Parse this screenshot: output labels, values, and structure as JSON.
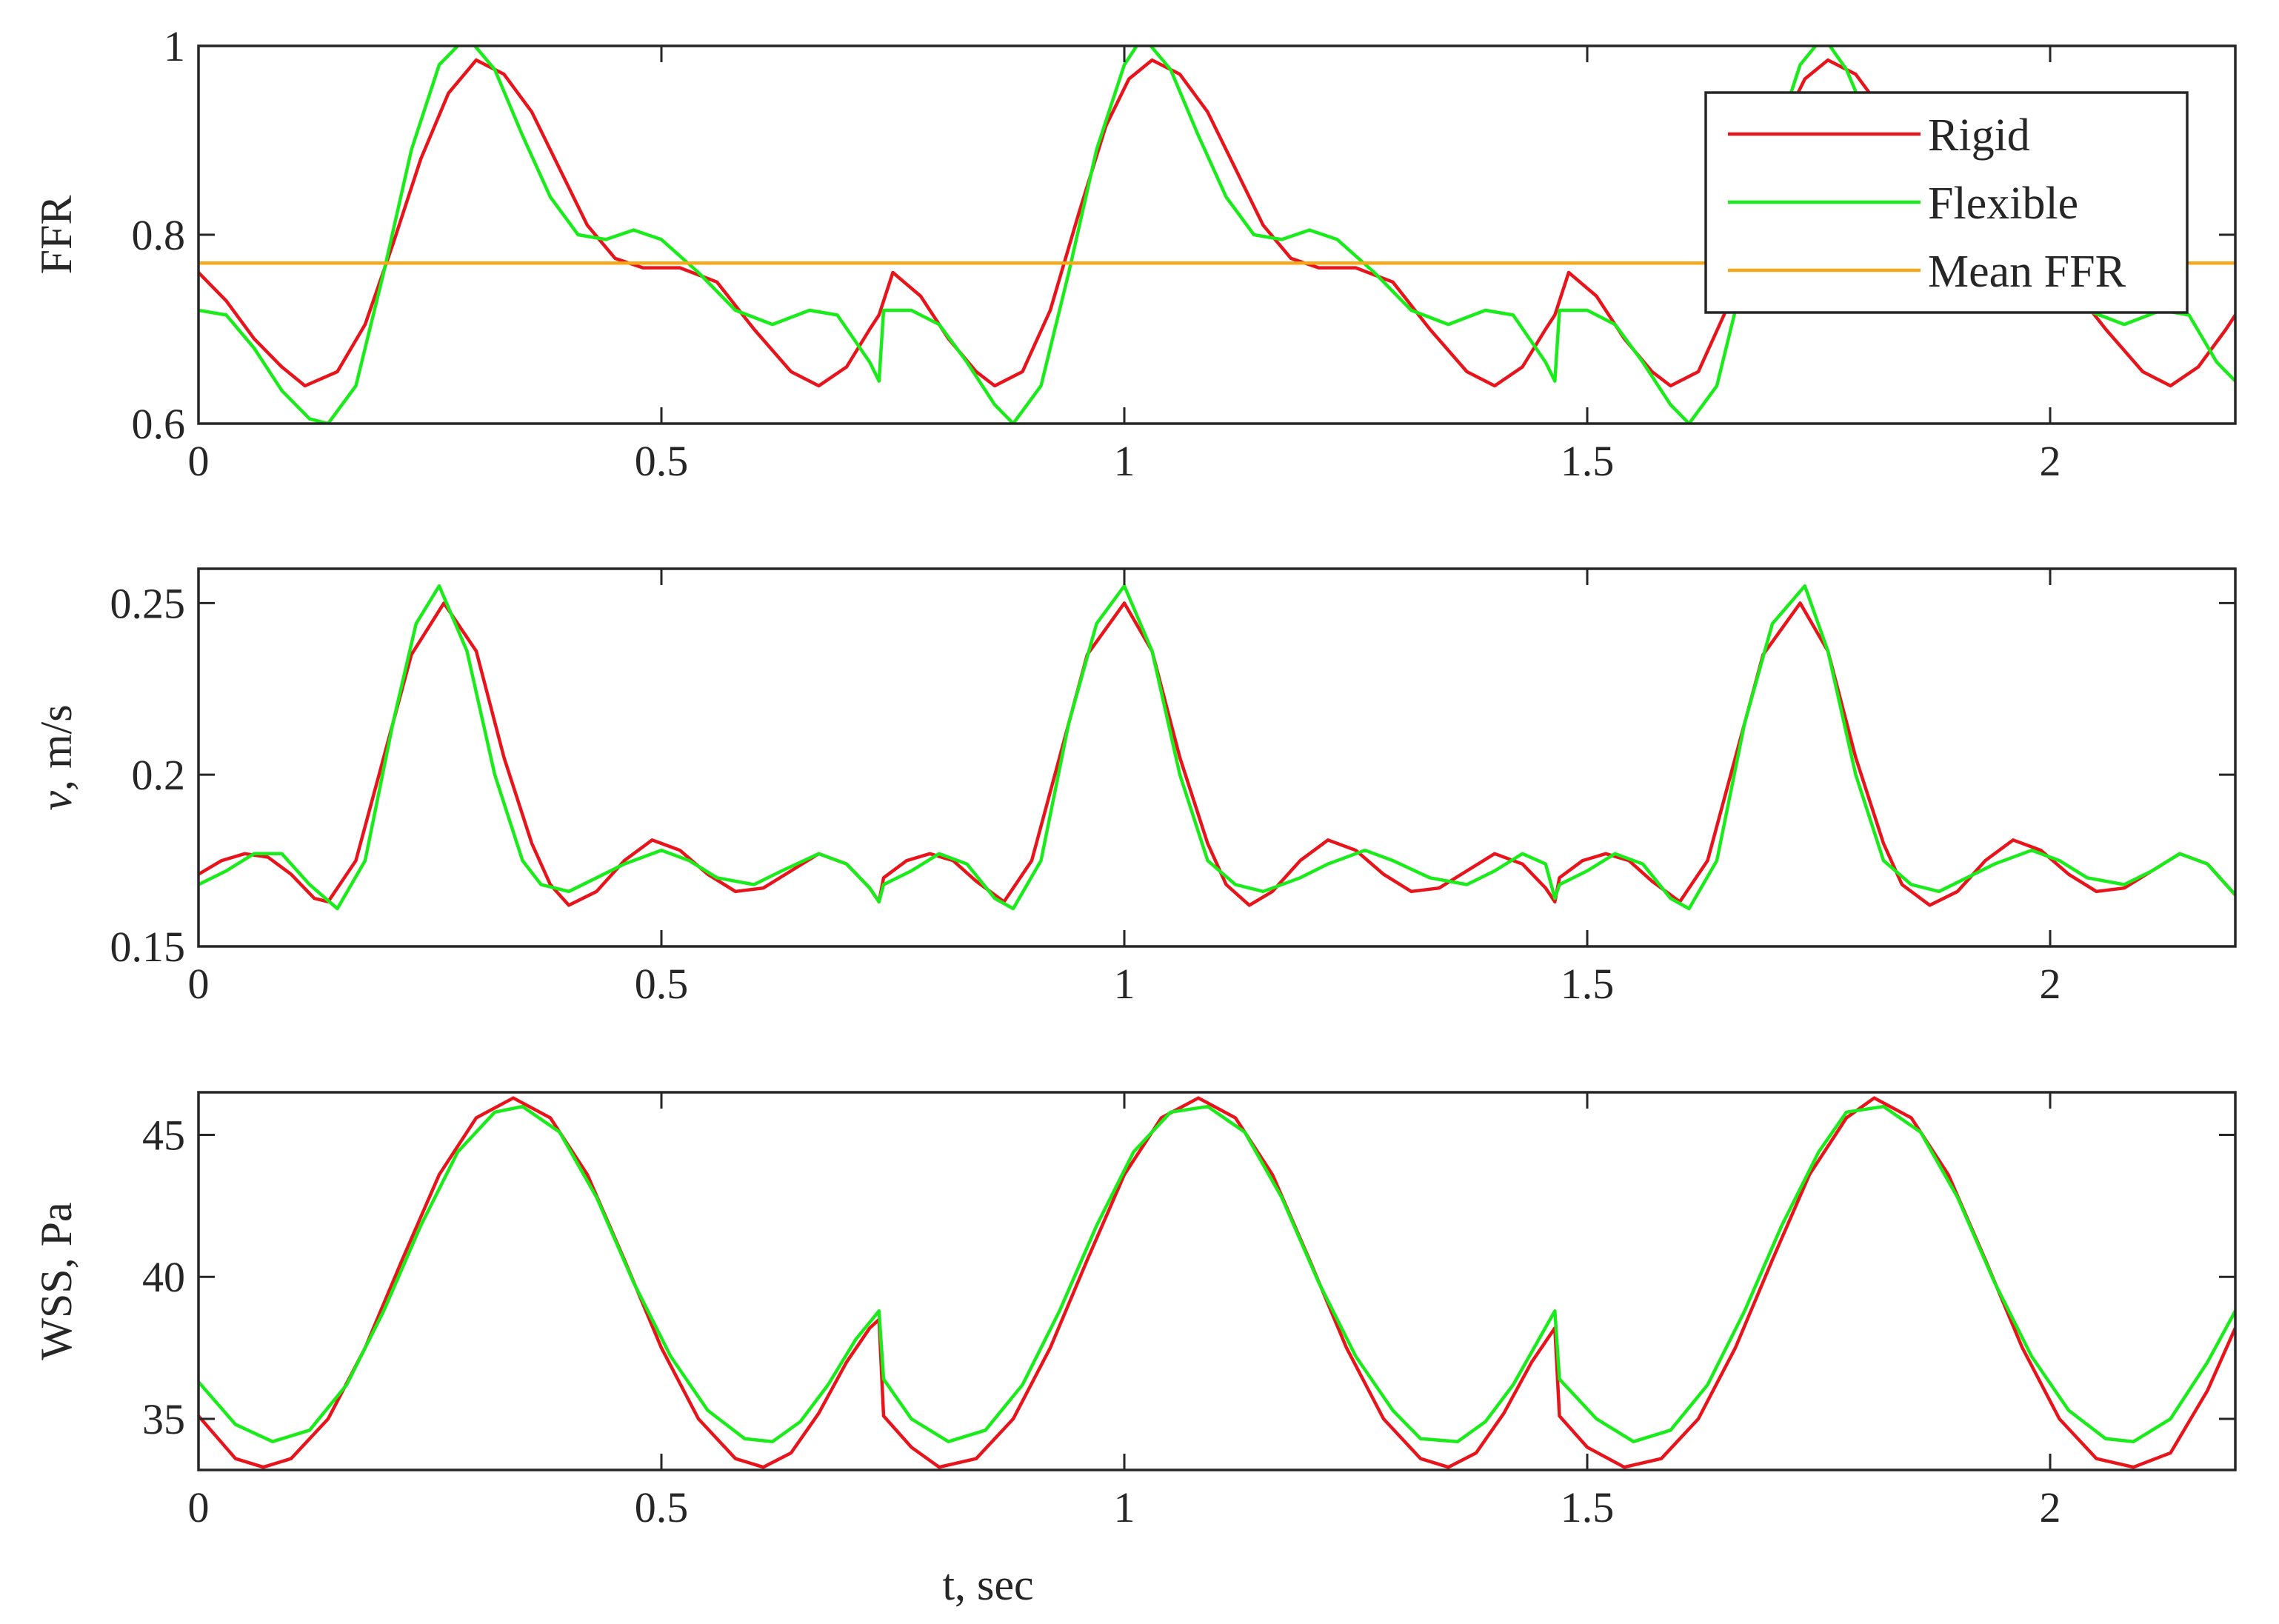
{
  "chart_data": [
    {
      "type": "line",
      "ylabel": "FFR",
      "xlabel": "",
      "xlim": [
        0,
        2.2
      ],
      "ylim": [
        0.6,
        1.0
      ],
      "xticks": [
        0,
        0.5,
        1,
        1.5,
        2
      ],
      "xtick_labels": [
        "0",
        "0.5",
        "1",
        "1.5",
        "2"
      ],
      "yticks": [
        0.6,
        0.8,
        1.0
      ],
      "ytick_labels": [
        "0.6",
        "0.8",
        "1"
      ],
      "legend": {
        "position": "top-right",
        "entries": [
          "Rigid",
          "Flexible",
          "Mean FFR"
        ]
      },
      "series": [
        {
          "name": "Rigid",
          "color": "#e8141b",
          "x": [
            0,
            0.03,
            0.06,
            0.09,
            0.115,
            0.15,
            0.18,
            0.21,
            0.24,
            0.27,
            0.3,
            0.33,
            0.36,
            0.39,
            0.42,
            0.45,
            0.48,
            0.52,
            0.56,
            0.6,
            0.64,
            0.67,
            0.7,
            0.725,
            0.735,
            0.75,
            0.78,
            0.81,
            0.84,
            0.86,
            0.89,
            0.92,
            0.95,
            0.98,
            1.005,
            1.03,
            1.06,
            1.09,
            1.12,
            1.15,
            1.18,
            1.21,
            1.25,
            1.29,
            1.33,
            1.37,
            1.4,
            1.43,
            1.455,
            1.465,
            1.48,
            1.51,
            1.54,
            1.57,
            1.59,
            1.62,
            1.65,
            1.68,
            1.71,
            1.735,
            1.76,
            1.79,
            1.82,
            1.85,
            1.88,
            1.91,
            1.94,
            1.98,
            2.02,
            2.06,
            2.1,
            2.13,
            2.16,
            2.19,
            2.2
          ],
          "values": [
            0.76,
            0.73,
            0.69,
            0.66,
            0.64,
            0.655,
            0.705,
            0.79,
            0.88,
            0.95,
            0.985,
            0.97,
            0.93,
            0.87,
            0.81,
            0.775,
            0.765,
            0.765,
            0.75,
            0.7,
            0.655,
            0.64,
            0.66,
            0.7,
            0.715,
            0.76,
            0.735,
            0.69,
            0.655,
            0.64,
            0.655,
            0.72,
            0.82,
            0.915,
            0.965,
            0.985,
            0.97,
            0.93,
            0.87,
            0.81,
            0.775,
            0.765,
            0.765,
            0.75,
            0.7,
            0.655,
            0.64,
            0.66,
            0.7,
            0.715,
            0.76,
            0.735,
            0.69,
            0.655,
            0.64,
            0.655,
            0.72,
            0.82,
            0.915,
            0.965,
            0.985,
            0.97,
            0.93,
            0.87,
            0.81,
            0.775,
            0.765,
            0.765,
            0.75,
            0.7,
            0.655,
            0.64,
            0.66,
            0.7,
            0.715
          ]
        },
        {
          "name": "Flexible",
          "color": "#1aeb1a",
          "x": [
            0,
            0.03,
            0.06,
            0.09,
            0.12,
            0.14,
            0.17,
            0.2,
            0.23,
            0.26,
            0.29,
            0.32,
            0.35,
            0.38,
            0.41,
            0.44,
            0.47,
            0.5,
            0.54,
            0.58,
            0.62,
            0.66,
            0.69,
            0.725,
            0.735,
            0.74,
            0.77,
            0.8,
            0.83,
            0.86,
            0.88,
            0.91,
            0.94,
            0.97,
            1.0,
            1.02,
            1.05,
            1.08,
            1.11,
            1.14,
            1.17,
            1.2,
            1.23,
            1.27,
            1.31,
            1.35,
            1.39,
            1.42,
            1.455,
            1.465,
            1.47,
            1.5,
            1.53,
            1.56,
            1.59,
            1.61,
            1.64,
            1.67,
            1.7,
            1.73,
            1.755,
            1.78,
            1.81,
            1.84,
            1.87,
            1.9,
            1.93,
            1.96,
            2.0,
            2.04,
            2.08,
            2.12,
            2.15,
            2.18,
            2.2
          ],
          "values": [
            0.72,
            0.715,
            0.68,
            0.635,
            0.605,
            0.6,
            0.64,
            0.76,
            0.89,
            0.98,
            1.01,
            0.975,
            0.905,
            0.84,
            0.8,
            0.795,
            0.805,
            0.795,
            0.76,
            0.72,
            0.705,
            0.72,
            0.715,
            0.665,
            0.645,
            0.72,
            0.72,
            0.705,
            0.665,
            0.62,
            0.6,
            0.64,
            0.76,
            0.89,
            0.98,
            1.01,
            0.975,
            0.905,
            0.84,
            0.8,
            0.795,
            0.805,
            0.795,
            0.76,
            0.72,
            0.705,
            0.72,
            0.715,
            0.665,
            0.645,
            0.72,
            0.72,
            0.705,
            0.665,
            0.62,
            0.6,
            0.64,
            0.76,
            0.89,
            0.98,
            1.01,
            0.975,
            0.905,
            0.84,
            0.8,
            0.795,
            0.805,
            0.795,
            0.76,
            0.72,
            0.705,
            0.72,
            0.715,
            0.665,
            0.645
          ]
        },
        {
          "name": "Mean FFR",
          "color": "#f5a91a",
          "x": [
            0,
            2.2
          ],
          "values": [
            0.77,
            0.77
          ]
        }
      ]
    },
    {
      "type": "line",
      "ylabel": "v, m/s",
      "ylabel_italic": "v",
      "ylabel_rest": ", m/s",
      "xlabel": "",
      "xlim": [
        0,
        2.2
      ],
      "ylim": [
        0.15,
        0.26
      ],
      "xticks": [
        0,
        0.5,
        1,
        1.5,
        2
      ],
      "xtick_labels": [
        "0",
        "0.5",
        "1",
        "1.5",
        "2"
      ],
      "yticks": [
        0.15,
        0.2,
        0.25
      ],
      "ytick_labels": [
        "0.15",
        "0.2",
        "0.25"
      ],
      "series": [
        {
          "name": "Rigid",
          "color": "#e8141b",
          "x": [
            0,
            0.025,
            0.05,
            0.075,
            0.1,
            0.125,
            0.14,
            0.17,
            0.2,
            0.23,
            0.265,
            0.3,
            0.33,
            0.36,
            0.38,
            0.4,
            0.43,
            0.46,
            0.49,
            0.52,
            0.55,
            0.58,
            0.61,
            0.64,
            0.67,
            0.7,
            0.725,
            0.735,
            0.74,
            0.765,
            0.79,
            0.815,
            0.84,
            0.87,
            0.9,
            0.93,
            0.96,
            1.0,
            1.03,
            1.06,
            1.09,
            1.11,
            1.135,
            1.16,
            1.19,
            1.22,
            1.25,
            1.28,
            1.31,
            1.34,
            1.37,
            1.4,
            1.43,
            1.455,
            1.465,
            1.47,
            1.495,
            1.52,
            1.545,
            1.57,
            1.6,
            1.63,
            1.66,
            1.69,
            1.73,
            1.76,
            1.79,
            1.82,
            1.84,
            1.87,
            1.9,
            1.93,
            1.96,
            1.99,
            2.02,
            2.05,
            2.08,
            2.11,
            2.14,
            2.17,
            2.2
          ],
          "values": [
            0.171,
            0.175,
            0.177,
            0.176,
            0.171,
            0.164,
            0.163,
            0.175,
            0.205,
            0.235,
            0.25,
            0.236,
            0.205,
            0.18,
            0.168,
            0.162,
            0.166,
            0.175,
            0.181,
            0.178,
            0.171,
            0.166,
            0.167,
            0.172,
            0.177,
            0.174,
            0.167,
            0.163,
            0.17,
            0.175,
            0.177,
            0.175,
            0.169,
            0.163,
            0.175,
            0.205,
            0.235,
            0.25,
            0.236,
            0.205,
            0.18,
            0.168,
            0.162,
            0.166,
            0.175,
            0.181,
            0.178,
            0.171,
            0.166,
            0.167,
            0.172,
            0.177,
            0.174,
            0.167,
            0.163,
            0.17,
            0.175,
            0.177,
            0.175,
            0.169,
            0.163,
            0.175,
            0.205,
            0.235,
            0.25,
            0.236,
            0.205,
            0.18,
            0.168,
            0.162,
            0.166,
            0.175,
            0.181,
            0.178,
            0.171,
            0.166,
            0.167,
            0.172,
            0.177,
            0.174,
            0.165
          ]
        },
        {
          "name": "Flexible",
          "color": "#1aeb1a",
          "x": [
            0,
            0.03,
            0.06,
            0.09,
            0.12,
            0.15,
            0.18,
            0.21,
            0.235,
            0.26,
            0.29,
            0.32,
            0.35,
            0.37,
            0.4,
            0.43,
            0.46,
            0.5,
            0.53,
            0.56,
            0.6,
            0.63,
            0.67,
            0.7,
            0.725,
            0.735,
            0.74,
            0.77,
            0.8,
            0.83,
            0.86,
            0.88,
            0.91,
            0.94,
            0.97,
            1.0,
            1.03,
            1.06,
            1.09,
            1.12,
            1.15,
            1.19,
            1.22,
            1.26,
            1.29,
            1.33,
            1.37,
            1.4,
            1.43,
            1.455,
            1.465,
            1.47,
            1.5,
            1.53,
            1.56,
            1.59,
            1.61,
            1.64,
            1.67,
            1.7,
            1.735,
            1.76,
            1.79,
            1.82,
            1.85,
            1.88,
            1.91,
            1.94,
            1.98,
            2.01,
            2.04,
            2.08,
            2.11,
            2.14,
            2.17,
            2.2
          ],
          "values": [
            0.168,
            0.172,
            0.177,
            0.177,
            0.168,
            0.161,
            0.175,
            0.215,
            0.244,
            0.255,
            0.236,
            0.2,
            0.175,
            0.168,
            0.166,
            0.17,
            0.174,
            0.178,
            0.175,
            0.17,
            0.168,
            0.172,
            0.177,
            0.174,
            0.167,
            0.163,
            0.168,
            0.172,
            0.177,
            0.174,
            0.164,
            0.161,
            0.175,
            0.215,
            0.244,
            0.255,
            0.236,
            0.2,
            0.175,
            0.168,
            0.166,
            0.17,
            0.174,
            0.178,
            0.175,
            0.17,
            0.168,
            0.172,
            0.177,
            0.174,
            0.164,
            0.168,
            0.172,
            0.177,
            0.174,
            0.164,
            0.161,
            0.175,
            0.215,
            0.244,
            0.255,
            0.236,
            0.2,
            0.175,
            0.168,
            0.166,
            0.17,
            0.174,
            0.178,
            0.175,
            0.17,
            0.168,
            0.172,
            0.177,
            0.174,
            0.165
          ]
        }
      ]
    },
    {
      "type": "line",
      "ylabel": "WSS, Pa",
      "xlabel": "t, sec",
      "xlim": [
        0,
        2.2
      ],
      "ylim": [
        33.2,
        46.5
      ],
      "xticks": [
        0,
        0.5,
        1,
        1.5,
        2
      ],
      "xtick_labels": [
        "0",
        "0.5",
        "1",
        "1.5",
        "2"
      ],
      "yticks": [
        35,
        40,
        45
      ],
      "ytick_labels": [
        "35",
        "40",
        "45"
      ],
      "series": [
        {
          "name": "Rigid",
          "color": "#e8141b",
          "x": [
            0,
            0.04,
            0.07,
            0.1,
            0.14,
            0.18,
            0.22,
            0.26,
            0.3,
            0.34,
            0.38,
            0.42,
            0.46,
            0.5,
            0.54,
            0.58,
            0.61,
            0.64,
            0.67,
            0.7,
            0.725,
            0.735,
            0.74,
            0.77,
            0.8,
            0.84,
            0.88,
            0.92,
            0.96,
            1.0,
            1.04,
            1.08,
            1.12,
            1.16,
            1.2,
            1.24,
            1.28,
            1.32,
            1.35,
            1.38,
            1.41,
            1.44,
            1.465,
            1.47,
            1.5,
            1.54,
            1.58,
            1.62,
            1.66,
            1.7,
            1.74,
            1.78,
            1.81,
            1.85,
            1.89,
            1.93,
            1.97,
            2.01,
            2.05,
            2.09,
            2.13,
            2.17,
            2.2
          ],
          "values": [
            35.1,
            33.6,
            33.3,
            33.6,
            35.0,
            37.5,
            40.6,
            43.6,
            45.6,
            46.3,
            45.6,
            43.6,
            40.6,
            37.5,
            35.0,
            33.6,
            33.3,
            33.8,
            35.2,
            37.0,
            38.2,
            38.5,
            35.1,
            34.0,
            33.3,
            33.6,
            35.0,
            37.5,
            40.6,
            43.6,
            45.6,
            46.3,
            45.6,
            43.6,
            40.6,
            37.5,
            35.0,
            33.6,
            33.3,
            33.8,
            35.2,
            37.0,
            38.2,
            35.1,
            34.0,
            33.3,
            33.6,
            35.0,
            37.5,
            40.6,
            43.6,
            45.6,
            46.3,
            45.6,
            43.6,
            40.6,
            37.5,
            35.0,
            33.6,
            33.3,
            33.8,
            36.0,
            38.2
          ]
        },
        {
          "name": "Flexible",
          "color": "#1aeb1a",
          "x": [
            0,
            0.04,
            0.08,
            0.12,
            0.16,
            0.2,
            0.24,
            0.28,
            0.32,
            0.35,
            0.39,
            0.43,
            0.47,
            0.51,
            0.55,
            0.59,
            0.62,
            0.65,
            0.68,
            0.71,
            0.735,
            0.74,
            0.77,
            0.81,
            0.85,
            0.89,
            0.93,
            0.97,
            1.01,
            1.05,
            1.09,
            1.13,
            1.17,
            1.21,
            1.25,
            1.29,
            1.32,
            1.36,
            1.39,
            1.42,
            1.465,
            1.47,
            1.51,
            1.55,
            1.59,
            1.63,
            1.67,
            1.71,
            1.75,
            1.78,
            1.82,
            1.86,
            1.9,
            1.94,
            1.98,
            2.02,
            2.06,
            2.09,
            2.13,
            2.17,
            2.2
          ],
          "values": [
            36.3,
            34.8,
            34.2,
            34.6,
            36.2,
            38.8,
            41.8,
            44.4,
            45.8,
            46.0,
            45.1,
            42.8,
            39.8,
            37.2,
            35.3,
            34.3,
            34.2,
            34.9,
            36.2,
            37.8,
            38.8,
            36.4,
            35.0,
            34.2,
            34.6,
            36.2,
            38.8,
            41.8,
            44.4,
            45.8,
            46.0,
            45.1,
            42.8,
            39.8,
            37.2,
            35.3,
            34.3,
            34.2,
            34.9,
            36.2,
            38.8,
            36.4,
            35.0,
            34.2,
            34.6,
            36.2,
            38.8,
            41.8,
            44.4,
            45.8,
            46.0,
            45.1,
            42.8,
            39.8,
            37.2,
            35.3,
            34.3,
            34.2,
            35.0,
            37.0,
            38.8
          ]
        }
      ]
    }
  ]
}
